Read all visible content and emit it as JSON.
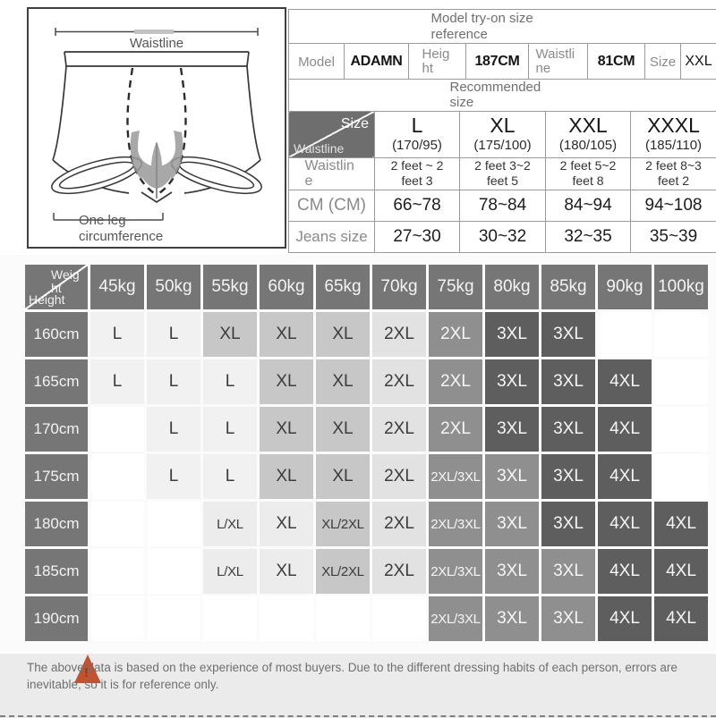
{
  "diagram": {
    "waistline_label": "Waistline",
    "one_leg_label": "One leg circumference"
  },
  "model_table": {
    "title": "Model try-on size reference",
    "fields": [
      {
        "label": "Model",
        "value": "ADAMN"
      },
      {
        "label": "Height",
        "value": "187CM"
      },
      {
        "label": "Waistline",
        "value": "81CM"
      },
      {
        "label": "Size",
        "value": "XXL"
      }
    ]
  },
  "recommended_table": {
    "title": "Recommended size",
    "corner_top": "Size",
    "corner_bottom": "Waistline",
    "size_columns": [
      {
        "size": "L",
        "height_weight": "(170/95)"
      },
      {
        "size": "XL",
        "height_weight": "(175/100)"
      },
      {
        "size": "XXL",
        "height_weight": "(180/105)"
      },
      {
        "size": "XXXL",
        "height_weight": "(185/110)"
      }
    ],
    "rows": [
      {
        "label": "Waistline",
        "values": [
          "2 feet ~ 2 feet 3",
          "2 feet 3~2 feet 5",
          "2 feet 5~2 feet 8",
          "2 feet 8~3 feet 2"
        ]
      },
      {
        "label": "CM (CM)",
        "values": [
          "66~78",
          "78~84",
          "84~94",
          "94~108"
        ]
      },
      {
        "label": "Jeans size",
        "values": [
          "27~30",
          "30~32",
          "32~35",
          "35~39"
        ]
      }
    ]
  },
  "size_matrix": {
    "corner_top": "Weight",
    "corner_bottom": "Height",
    "header_color": "#767676",
    "shades": {
      "light": "#f1f1f1",
      "pale": "#ececec",
      "soft": "#e2e2e2",
      "gray": "#c7c7c7",
      "medium": "#8f8f8f",
      "dark": "#5e5e5e",
      "blank": "#ffffff"
    },
    "weights": [
      "45kg",
      "50kg",
      "55kg",
      "60kg",
      "65kg",
      "70kg",
      "75kg",
      "80kg",
      "85kg",
      "90kg",
      "100kg"
    ],
    "rows": [
      {
        "height": "160cm",
        "cells": [
          {
            "label": "L",
            "shade": "light"
          },
          {
            "label": "L",
            "shade": "light"
          },
          {
            "label": "XL",
            "shade": "gray"
          },
          {
            "label": "XL",
            "shade": "gray"
          },
          {
            "label": "XL",
            "shade": "gray"
          },
          {
            "label": "2XL",
            "shade": "soft"
          },
          {
            "label": "2XL",
            "shade": "medium"
          },
          {
            "label": "3XL",
            "shade": "dark"
          },
          {
            "label": "3XL",
            "shade": "dark"
          },
          {
            "label": "",
            "shade": "blank"
          },
          {
            "label": "",
            "shade": "blank"
          }
        ]
      },
      {
        "height": "165cm",
        "cells": [
          {
            "label": "L",
            "shade": "light"
          },
          {
            "label": "L",
            "shade": "light"
          },
          {
            "label": "L",
            "shade": "light"
          },
          {
            "label": "XL",
            "shade": "gray"
          },
          {
            "label": "XL",
            "shade": "gray"
          },
          {
            "label": "2XL",
            "shade": "soft"
          },
          {
            "label": "2XL",
            "shade": "medium"
          },
          {
            "label": "3XL",
            "shade": "dark"
          },
          {
            "label": "3XL",
            "shade": "dark"
          },
          {
            "label": "4XL",
            "shade": "dark"
          },
          {
            "label": "",
            "shade": "blank"
          }
        ]
      },
      {
        "height": "170cm",
        "cells": [
          {
            "label": "",
            "shade": "blank"
          },
          {
            "label": "L",
            "shade": "light"
          },
          {
            "label": "L",
            "shade": "light"
          },
          {
            "label": "XL",
            "shade": "gray"
          },
          {
            "label": "XL",
            "shade": "gray"
          },
          {
            "label": "2XL",
            "shade": "soft"
          },
          {
            "label": "2XL",
            "shade": "medium"
          },
          {
            "label": "3XL",
            "shade": "dark"
          },
          {
            "label": "3XL",
            "shade": "dark"
          },
          {
            "label": "4XL",
            "shade": "dark"
          },
          {
            "label": "",
            "shade": "blank"
          }
        ]
      },
      {
        "height": "175cm",
        "cells": [
          {
            "label": "",
            "shade": "blank"
          },
          {
            "label": "L",
            "shade": "light"
          },
          {
            "label": "L",
            "shade": "light"
          },
          {
            "label": "XL",
            "shade": "gray"
          },
          {
            "label": "XL",
            "shade": "gray"
          },
          {
            "label": "2XL",
            "shade": "soft"
          },
          {
            "label": "2XL/3XL",
            "shade": "medium"
          },
          {
            "label": "3XL",
            "shade": "medium"
          },
          {
            "label": "3XL",
            "shade": "dark"
          },
          {
            "label": "4XL",
            "shade": "dark"
          },
          {
            "label": "",
            "shade": "blank"
          }
        ]
      },
      {
        "height": "180cm",
        "cells": [
          {
            "label": "",
            "shade": "blank"
          },
          {
            "label": "",
            "shade": "blank"
          },
          {
            "label": "L/XL",
            "shade": "pale"
          },
          {
            "label": "XL",
            "shade": "pale"
          },
          {
            "label": "XL/2XL",
            "shade": "gray"
          },
          {
            "label": "2XL",
            "shade": "soft"
          },
          {
            "label": "2XL/3XL",
            "shade": "medium"
          },
          {
            "label": "3XL",
            "shade": "medium"
          },
          {
            "label": "3XL",
            "shade": "dark"
          },
          {
            "label": "4XL",
            "shade": "dark"
          },
          {
            "label": "4XL",
            "shade": "dark"
          }
        ]
      },
      {
        "height": "185cm",
        "cells": [
          {
            "label": "",
            "shade": "blank"
          },
          {
            "label": "",
            "shade": "blank"
          },
          {
            "label": "L/XL",
            "shade": "pale"
          },
          {
            "label": "XL",
            "shade": "pale"
          },
          {
            "label": "XL/2XL",
            "shade": "gray"
          },
          {
            "label": "2XL",
            "shade": "soft"
          },
          {
            "label": "2XL/3XL",
            "shade": "medium"
          },
          {
            "label": "3XL",
            "shade": "medium"
          },
          {
            "label": "3XL",
            "shade": "medium"
          },
          {
            "label": "4XL",
            "shade": "dark"
          },
          {
            "label": "4XL",
            "shade": "dark"
          }
        ]
      },
      {
        "height": "190cm",
        "cells": [
          {
            "label": "",
            "shade": "blank"
          },
          {
            "label": "",
            "shade": "blank"
          },
          {
            "label": "",
            "shade": "blank"
          },
          {
            "label": "",
            "shade": "blank"
          },
          {
            "label": "",
            "shade": "blank"
          },
          {
            "label": "",
            "shade": "blank"
          },
          {
            "label": "2XL/3XL",
            "shade": "medium"
          },
          {
            "label": "3XL",
            "shade": "medium"
          },
          {
            "label": "3XL",
            "shade": "medium"
          },
          {
            "label": "4XL",
            "shade": "dark"
          },
          {
            "label": "4XL",
            "shade": "dark"
          }
        ]
      }
    ]
  },
  "footer": {
    "note": "The above data is based on the experience of most buyers. Due to the different dressing habits of each person, errors are inevitable, so it is for reference only.",
    "warning_color": "#c05430"
  }
}
